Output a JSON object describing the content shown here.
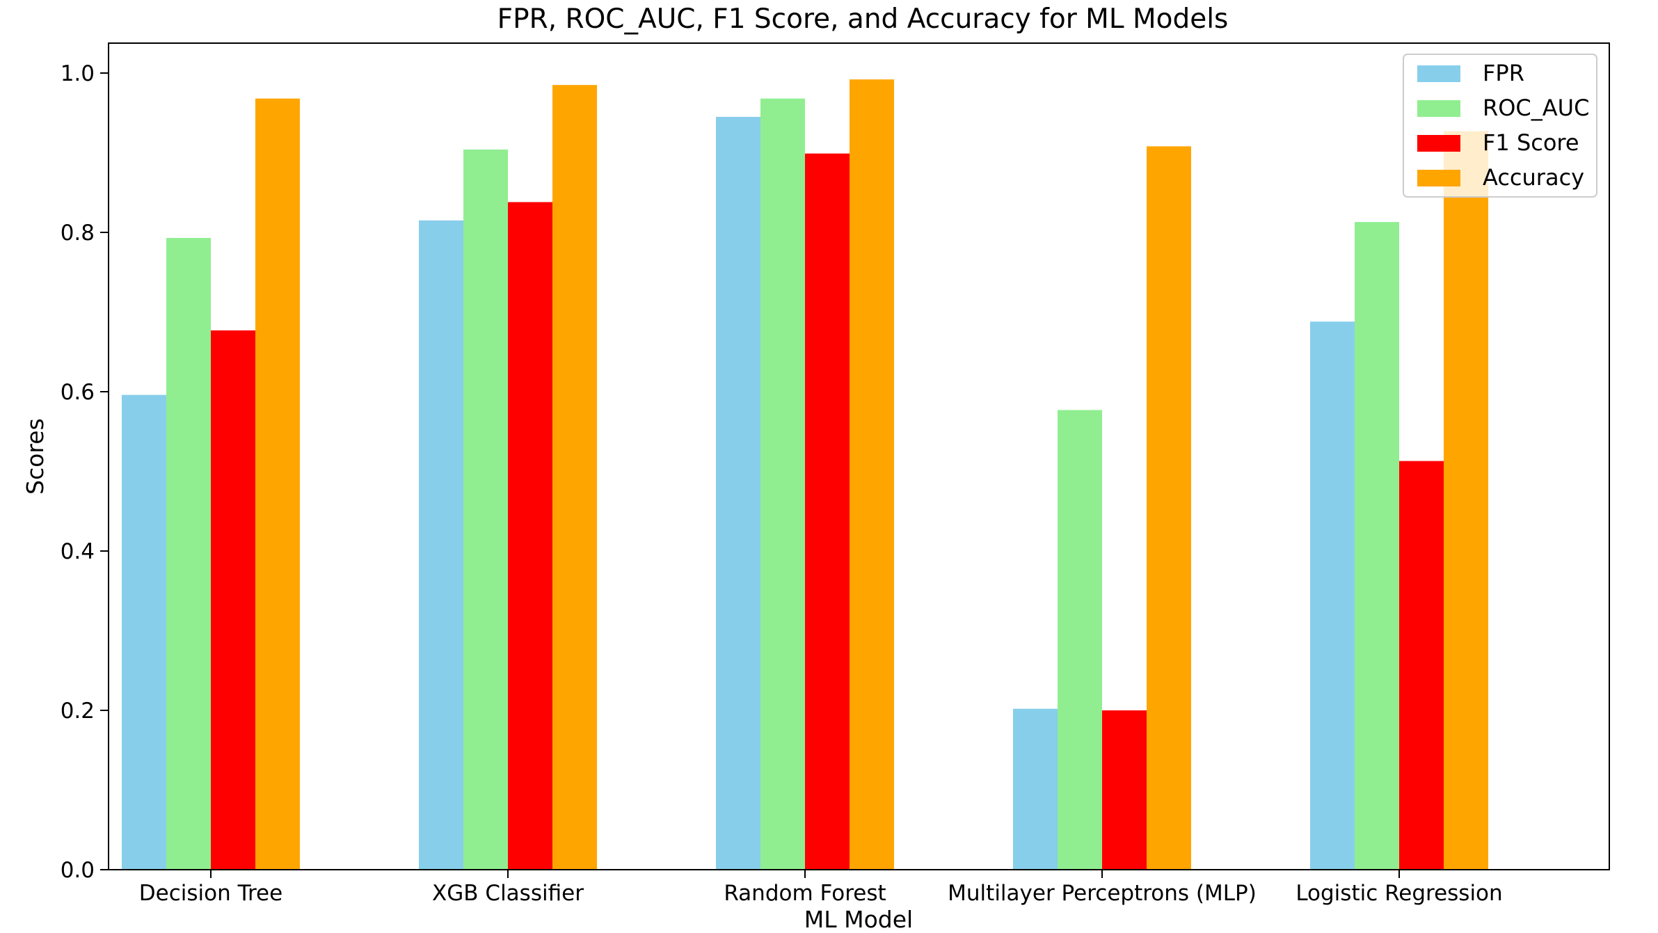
{
  "chart_data": {
    "type": "bar",
    "title": "FPR, ROC_AUC, F1 Score, and Accuracy for ML Models",
    "xlabel": "ML Model",
    "ylabel": "Scores",
    "ylim": [
      0,
      1.04
    ],
    "yticks": [
      "0.0",
      "0.2",
      "0.4",
      "0.6",
      "0.8",
      "1.0"
    ],
    "grid": false,
    "legend_position": "top-right",
    "categories": [
      "Decision Tree",
      "XGB Classifier",
      "Random Forest",
      "Multilayer Perceptrons (MLP)",
      "Logistic Regression"
    ],
    "series": [
      {
        "name": "FPR",
        "color": "#87ceeb",
        "values": [
          0.596,
          0.815,
          0.945,
          0.202,
          0.688
        ]
      },
      {
        "name": "ROC_AUC",
        "color": "#90ee90",
        "values": [
          0.793,
          0.904,
          0.968,
          0.577,
          0.813
        ]
      },
      {
        "name": "F1 Score",
        "color": "#ff0000",
        "values": [
          0.677,
          0.838,
          0.899,
          0.2,
          0.513
        ]
      },
      {
        "name": "Accuracy",
        "color": "#ffa500",
        "values": [
          0.968,
          0.985,
          0.992,
          0.908,
          0.927
        ]
      }
    ]
  }
}
